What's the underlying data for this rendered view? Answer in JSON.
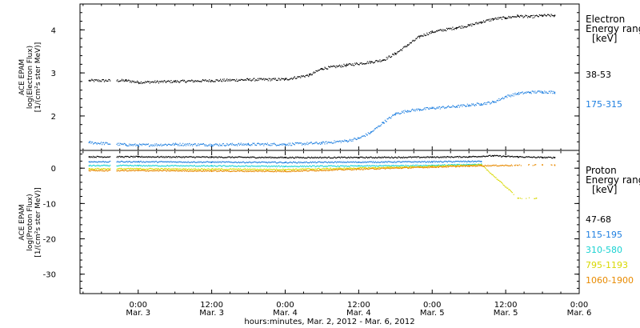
{
  "x_axis": {
    "title": "hours:minutes, Mar.  2, 2012 - Mar.  6, 2012",
    "ticks": [
      {
        "hour": 0,
        "time": "0:00",
        "date": "Mar. 3"
      },
      {
        "hour": 12,
        "time": "12:00",
        "date": "Mar. 3"
      },
      {
        "hour": 24,
        "time": "0:00",
        "date": "Mar. 4"
      },
      {
        "hour": 36,
        "time": "12:00",
        "date": "Mar. 4"
      },
      {
        "hour": 48,
        "time": "0:00",
        "date": "Mar. 5"
      },
      {
        "hour": 60,
        "time": "12:00",
        "date": "Mar. 5"
      },
      {
        "hour": 72,
        "time": "0:00",
        "date": "Mar. 6"
      }
    ]
  },
  "electron_panel": {
    "ylabel_lines": [
      "ACE EPAM",
      "log(Electron Flux)",
      "[1/(cm²s ster MeV)]"
    ],
    "legend_title_lines": [
      "Electron",
      "Energy ranges",
      "[keV]"
    ],
    "yticks": [
      2,
      3,
      4
    ],
    "ylim": [
      1.2,
      4.6
    ]
  },
  "proton_panel": {
    "ylabel_lines": [
      "ACE EPAM",
      "log(Proton Flux)",
      "[1/(cm²s ster MeV)]"
    ],
    "legend_title_lines": [
      "Proton",
      "Energy ranges",
      "[keV]"
    ],
    "yticks": [
      0,
      -10,
      -20,
      -30
    ],
    "ylim": [
      -35.5,
      4.8
    ]
  },
  "chart_data": [
    {
      "type": "scatter",
      "panel": "electron",
      "x_unit": "hours since 2012-03-03 00:00 UT",
      "series": [
        {
          "name": "38-53",
          "color": "#000000",
          "x": [
            -8,
            -2,
            0,
            6,
            12,
            18,
            24,
            28,
            30,
            34,
            38,
            40,
            42,
            44,
            46,
            48,
            52,
            54,
            56,
            58,
            60,
            62,
            64,
            66,
            68
          ],
          "y": [
            2.82,
            2.82,
            2.78,
            2.8,
            2.82,
            2.84,
            2.85,
            2.95,
            3.1,
            3.18,
            3.25,
            3.3,
            3.45,
            3.65,
            3.85,
            3.95,
            4.05,
            4.1,
            4.18,
            4.25,
            4.28,
            4.32,
            4.3,
            4.33,
            4.33
          ]
        },
        {
          "name": "175-315",
          "color": "#1e7fe0",
          "x": [
            -8,
            -2,
            0,
            6,
            12,
            18,
            24,
            30,
            34,
            36,
            38,
            40,
            42,
            44,
            46,
            48,
            52,
            54,
            56,
            58,
            60,
            62,
            64,
            66,
            68
          ],
          "y": [
            1.38,
            1.33,
            1.32,
            1.34,
            1.33,
            1.34,
            1.34,
            1.37,
            1.42,
            1.48,
            1.62,
            1.85,
            2.05,
            2.12,
            2.15,
            2.18,
            2.22,
            2.25,
            2.28,
            2.32,
            2.45,
            2.52,
            2.55,
            2.56,
            2.55
          ]
        }
      ]
    },
    {
      "type": "scatter",
      "panel": "proton",
      "x_unit": "hours since 2012-03-03 00:00 UT",
      "series": [
        {
          "name": "47-68",
          "color": "#000000",
          "x": [
            -8,
            0,
            12,
            24,
            36,
            48,
            54,
            58,
            60,
            62,
            66,
            68
          ],
          "y": [
            3.2,
            3.2,
            3.1,
            3.0,
            3.0,
            3.1,
            3.2,
            3.5,
            3.3,
            3.2,
            3.0,
            3.0
          ]
        },
        {
          "name": "115-195",
          "color": "#1e7fe0",
          "x": [
            -8,
            0,
            12,
            24,
            36,
            48,
            54,
            56
          ],
          "y": [
            1.8,
            1.8,
            1.7,
            1.6,
            1.7,
            1.8,
            1.9,
            1.9
          ]
        },
        {
          "name": "310-580",
          "color": "#19d2d2",
          "x": [
            -8,
            0,
            12,
            24,
            36,
            48,
            54,
            56
          ],
          "y": [
            0.7,
            0.7,
            0.6,
            0.5,
            0.6,
            0.8,
            1.0,
            1.1
          ]
        },
        {
          "name": "795-1193",
          "color": "#d8d800",
          "x": [
            -8,
            0,
            12,
            24,
            36,
            48,
            54,
            56,
            62,
            65
          ],
          "y": [
            -0.2,
            -0.2,
            -0.3,
            -0.4,
            0.0,
            0.5,
            0.8,
            0.9,
            -8.5,
            -8.5
          ]
        },
        {
          "name": "1060-1900",
          "color": "#e88a00",
          "x": [
            -8,
            0,
            12,
            24,
            36,
            48,
            54,
            56,
            62,
            66,
            68
          ],
          "y": [
            -0.7,
            -0.7,
            -0.8,
            -0.9,
            -0.3,
            0.3,
            0.6,
            0.7,
            0.8,
            0.9,
            0.9
          ]
        }
      ]
    }
  ]
}
